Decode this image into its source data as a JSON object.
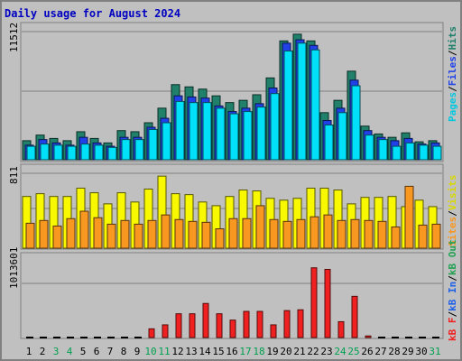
{
  "chart_data": {
    "type": "bar",
    "title": "Daily usage for August 2024",
    "x": [
      1,
      2,
      3,
      4,
      5,
      6,
      7,
      8,
      9,
      10,
      11,
      12,
      13,
      14,
      15,
      16,
      17,
      18,
      19,
      20,
      21,
      22,
      23,
      24,
      25,
      26,
      27,
      28,
      29,
      30,
      31
    ],
    "weekend_days": [
      3,
      4,
      10,
      11,
      17,
      18,
      24,
      25,
      31
    ],
    "panels": [
      {
        "name": "top",
        "ymax_label": "11512",
        "ymax": 11512,
        "legend": [
          "Pages",
          "Files",
          "Hits"
        ],
        "series": [
          {
            "name": "Hits",
            "color": "#20806a",
            "values": [
              1700,
              2200,
              1900,
              1700,
              2500,
              1900,
              1500,
              2600,
              2500,
              3300,
              4600,
              6700,
              6500,
              6300,
              5700,
              5100,
              5300,
              5800,
              7300,
              10600,
              11200,
              10600,
              4200,
              5300,
              7900,
              3000,
              2300,
              2000,
              2400,
              1600,
              1700
            ]
          },
          {
            "name": "Files",
            "color": "#2040e8",
            "values": [
              1300,
              1800,
              1500,
              1300,
              2000,
              1500,
              1200,
              2000,
              2000,
              2900,
              3700,
              5700,
              5600,
              5500,
              4800,
              4300,
              4600,
              5000,
              6400,
              10400,
              10700,
              10200,
              3500,
              4600,
              7100,
              2600,
              2000,
              1700,
              1900,
              1400,
              1500
            ]
          },
          {
            "name": "Pages",
            "color": "#00e0f8",
            "values": [
              1200,
              1400,
              1300,
              1200,
              1400,
              1300,
              1100,
              1800,
              1800,
              2700,
              3300,
              5200,
              5100,
              5100,
              4600,
              4100,
              4300,
              4700,
              5900,
              9700,
              10400,
              9800,
              3100,
              4200,
              6600,
              2200,
              1800,
              1200,
              1500,
              1300,
              1200
            ]
          }
        ]
      },
      {
        "name": "middle",
        "ymax_label": "811",
        "ymax": 811,
        "legend": [
          "Visits",
          "Sites"
        ],
        "series": [
          {
            "name": "Visits",
            "color": "#f8f800",
            "values": [
              560,
              590,
              560,
              560,
              650,
              600,
              480,
              600,
              500,
              640,
              780,
              590,
              580,
              500,
              460,
              560,
              630,
              620,
              540,
              520,
              540,
              650,
              650,
              630,
              480,
              550,
              550,
              560,
              450,
              520,
              450
            ]
          },
          {
            "name": "Sites",
            "color": "#f89820",
            "values": [
              270,
              300,
              240,
              320,
              400,
              330,
              260,
              300,
              260,
              300,
              360,
              310,
              290,
              280,
              210,
              320,
              320,
              460,
              310,
              290,
              310,
              340,
              360,
              300,
              310,
              300,
              290,
              230,
              670,
              250,
              260
            ]
          }
        ]
      },
      {
        "name": "bottom",
        "ymax_label": "1013601",
        "ymax": 1013601,
        "legend": [
          "kB F",
          "kB In",
          "kB Out"
        ],
        "series": [
          {
            "name": "kB F",
            "color": "#f02020",
            "values": [
              0,
              0,
              0,
              0,
              0,
              0,
              0,
              0,
              0,
              110000,
              160000,
              300000,
              300000,
              430000,
              300000,
              220000,
              330000,
              330000,
              160000,
              340000,
              350000,
              880000,
              860000,
              200000,
              520000,
              20000,
              0,
              0,
              0,
              0,
              0
            ]
          }
        ]
      }
    ]
  }
}
